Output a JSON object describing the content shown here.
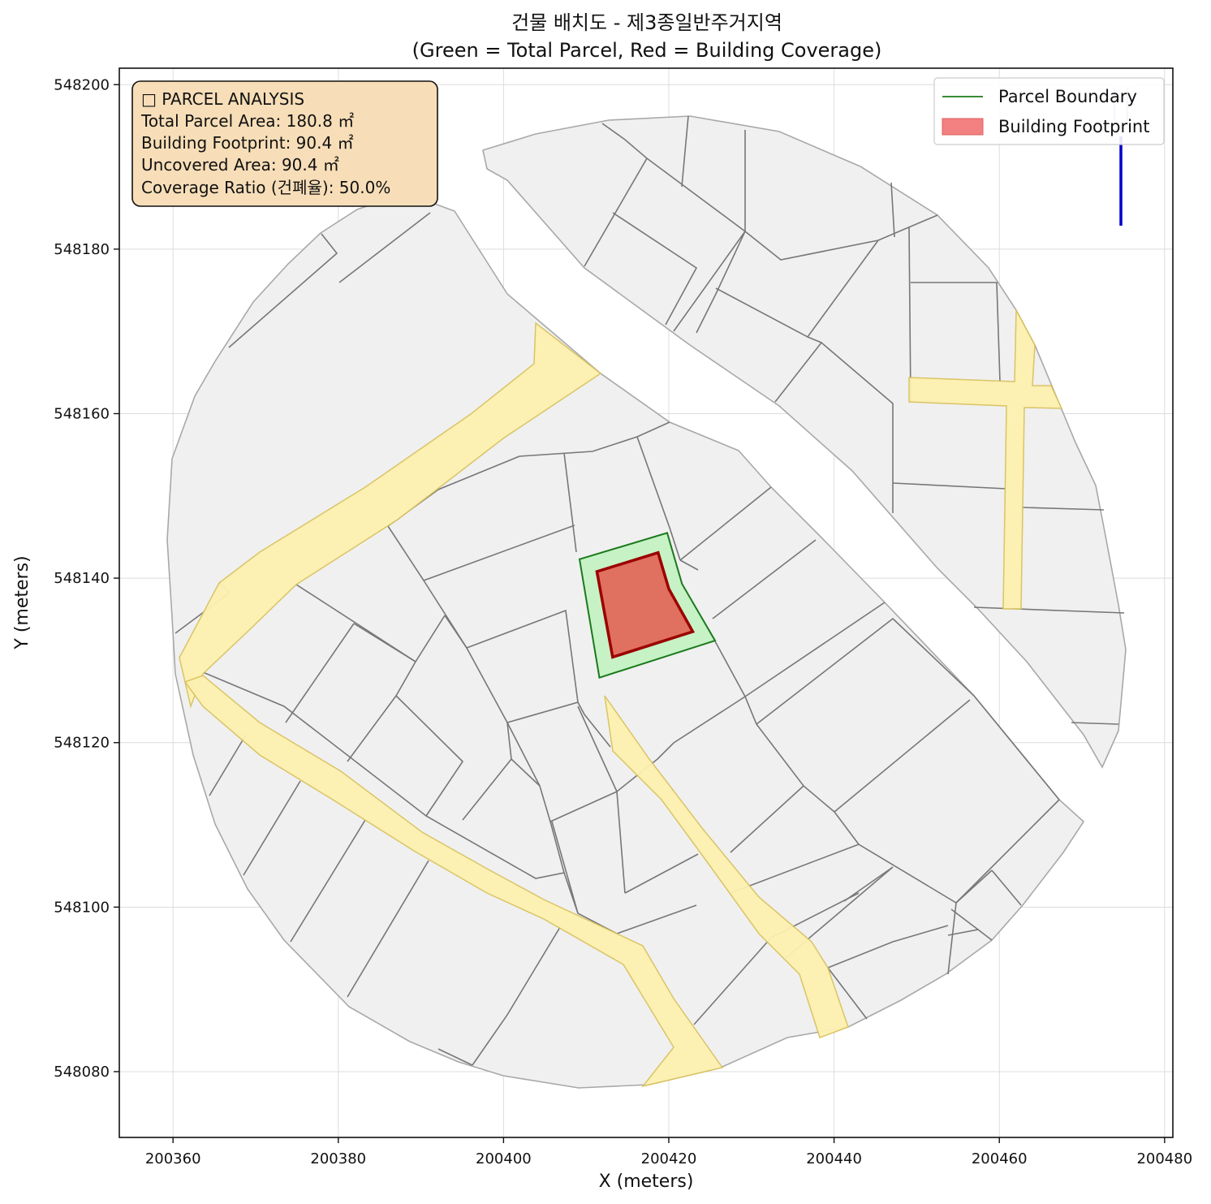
{
  "chart_data": {
    "type": "map",
    "title_line1": "건물 배치도 - 제3종일반주거지역",
    "title_line2": "(Green = Total Parcel, Red = Building Coverage)",
    "xlabel": "X (meters)",
    "ylabel": "Y (meters)",
    "xlim": [
      200353.5,
      200481
    ],
    "ylim": [
      548072,
      548202
    ],
    "xticks": [
      "200360",
      "200380",
      "200400",
      "200420",
      "200440",
      "200460",
      "200480"
    ],
    "yticks": [
      "548080",
      "548100",
      "548120",
      "548140",
      "548160",
      "548180",
      "548200"
    ],
    "grid": true,
    "legend_position": "top-right",
    "legend": [
      {
        "label": "Parcel Boundary",
        "color": "#1b7a1b"
      },
      {
        "label": "Building Footprint",
        "color": "#f28080"
      }
    ],
    "info_box": {
      "lines": [
        "□ PARCEL ANALYSIS",
        "Total Parcel Area: 180.8 ㎡",
        "Building Footprint: 90.4 ㎡",
        "Uncovered Area: 90.4 ㎡",
        "Coverage Ratio (건폐율): 50.0%"
      ],
      "background": "#f7deb8"
    },
    "target_parcel": {
      "polygon": [
        [
          200409.2,
          548142.3
        ],
        [
          200419.8,
          548145.5
        ],
        [
          200421.6,
          548139.3
        ],
        [
          200425.6,
          548132.4
        ],
        [
          200411.6,
          548127.9
        ]
      ],
      "fill": "#c6f2c6",
      "stroke": "#1b7a1b"
    },
    "building_footprint": {
      "polygon": [
        [
          200411.3,
          548140.8
        ],
        [
          200418.7,
          548143.1
        ],
        [
          200420.0,
          548138.7
        ],
        [
          200422.9,
          548133.5
        ],
        [
          200413.2,
          548130.4
        ]
      ],
      "fill": "#e07060",
      "stroke": "#9b0000"
    },
    "north_arrow_color": "#0000cc"
  }
}
